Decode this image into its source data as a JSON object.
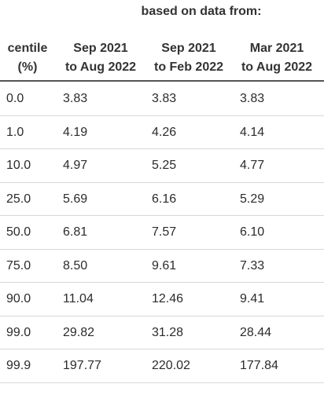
{
  "table": {
    "group_title": "based on data from:",
    "headers": {
      "centile": [
        "centile",
        "(%)"
      ],
      "col1": [
        "Sep 2021",
        "to Aug 2022"
      ],
      "col2": [
        "Sep 2021",
        "to Feb 2022"
      ],
      "col3": [
        "Mar 2021",
        "to Aug 2022"
      ]
    },
    "rows": [
      {
        "centile": "0.0",
        "c1": "3.83",
        "c2": "3.83",
        "c3": "3.83"
      },
      {
        "centile": "1.0",
        "c1": "4.19",
        "c2": "4.26",
        "c3": "4.14"
      },
      {
        "centile": "10.0",
        "c1": "4.97",
        "c2": "5.25",
        "c3": "4.77"
      },
      {
        "centile": "25.0",
        "c1": "5.69",
        "c2": "6.16",
        "c3": "5.29"
      },
      {
        "centile": "50.0",
        "c1": "6.81",
        "c2": "7.57",
        "c3": "6.10"
      },
      {
        "centile": "75.0",
        "c1": "8.50",
        "c2": "9.61",
        "c3": "7.33"
      },
      {
        "centile": "90.0",
        "c1": "11.04",
        "c2": "12.46",
        "c3": "9.41"
      },
      {
        "centile": "99.0",
        "c1": "29.82",
        "c2": "31.28",
        "c3": "28.44"
      },
      {
        "centile": "99.9",
        "c1": "197.77",
        "c2": "220.02",
        "c3": "177.84"
      }
    ]
  }
}
